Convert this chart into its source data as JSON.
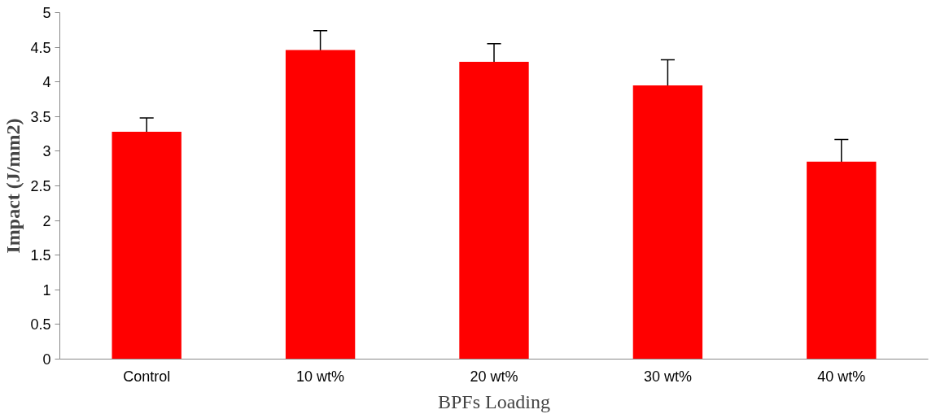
{
  "chart_data": {
    "type": "bar",
    "xlabel": "BPFs Loading",
    "ylabel": "Impact (J/mm2)",
    "categories": [
      "Control",
      "10 wt%",
      "20 wt%",
      "30 wt%",
      "40 wt%"
    ],
    "values": [
      3.28,
      4.46,
      4.29,
      3.95,
      2.85
    ],
    "errors": [
      0.2,
      0.28,
      0.26,
      0.37,
      0.32
    ],
    "color": "#ff0000",
    "ylim": [
      0,
      5
    ],
    "yticks": [
      0,
      0.5,
      1,
      1.5,
      2,
      2.5,
      3,
      3.5,
      4,
      4.5,
      5
    ],
    "grid": false
  }
}
